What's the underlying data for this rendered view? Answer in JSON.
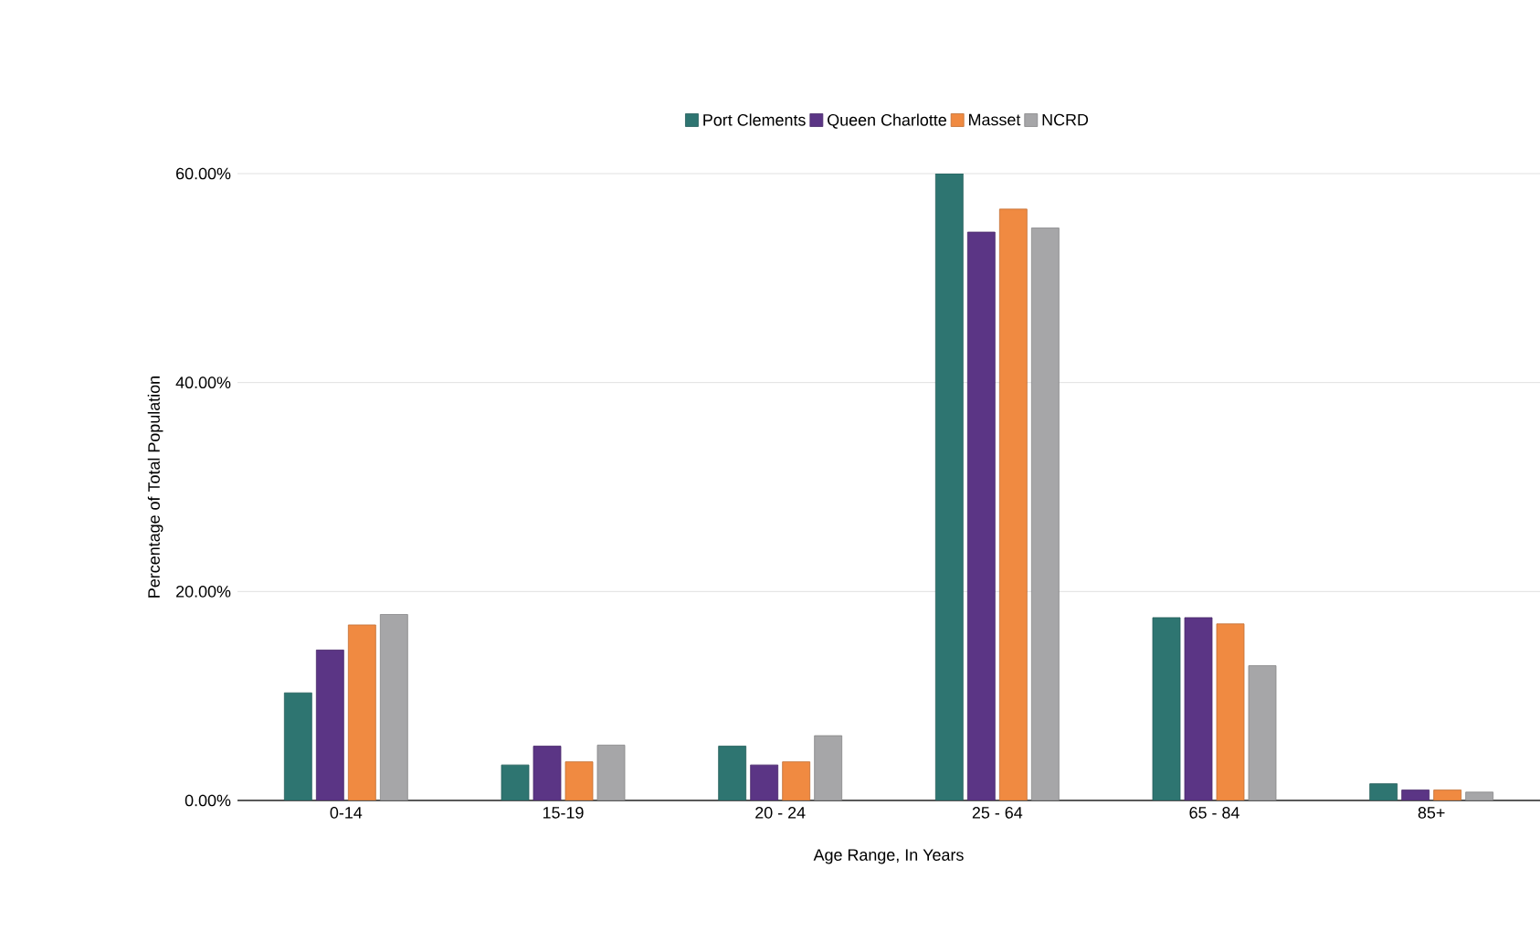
{
  "chart_data": {
    "type": "bar",
    "xlabel": "Age Range, In Years",
    "ylabel": "Percentage of Total Population",
    "categories": [
      "0-14",
      "15-19",
      "20 - 24",
      "25 - 64",
      "65 - 84",
      "85+"
    ],
    "series": [
      {
        "name": "Port Clements",
        "color": "#2e7571",
        "values": [
          10.3,
          3.4,
          5.2,
          60.0,
          17.5,
          1.6
        ]
      },
      {
        "name": "Queen Charlotte",
        "color": "#5b3585",
        "values": [
          14.4,
          5.2,
          3.4,
          54.4,
          17.5,
          1.0
        ]
      },
      {
        "name": "Masset",
        "color": "#f08a41",
        "values": [
          16.8,
          3.7,
          3.7,
          56.6,
          16.9,
          1.0
        ]
      },
      {
        "name": "NCRD",
        "color": "#a6a6a8",
        "values": [
          17.8,
          5.3,
          6.2,
          54.8,
          12.9,
          0.8
        ]
      }
    ],
    "ylim": [
      0,
      60
    ],
    "yticks": [
      {
        "value": 0,
        "label": "0.00%"
      },
      {
        "value": 20,
        "label": "20.00%"
      },
      {
        "value": 40,
        "label": "40.00%"
      },
      {
        "value": 60,
        "label": "60.00%"
      }
    ],
    "grid": "y",
    "legend": "top"
  }
}
